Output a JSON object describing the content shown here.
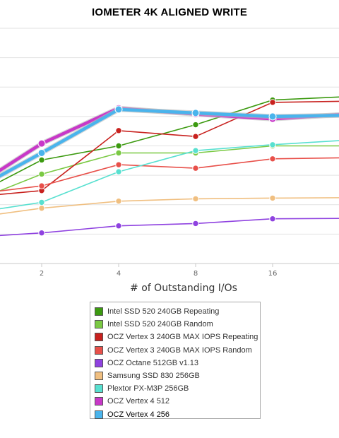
{
  "chart_data": {
    "type": "line",
    "title": "IOMETER 4K ALIGNED WRITE",
    "xlabel": "# of Outstanding I/Os",
    "ylabel": "",
    "x_scale": "log2",
    "x_ticks": [
      "2",
      "4",
      "8",
      "16"
    ],
    "ylim": [
      0,
      100
    ],
    "grid": "horizontal",
    "legend_position": "bottom",
    "series": [
      {
        "name": "Intel SSD 520 240GB Repeating",
        "color": "#3c9a10",
        "x": [
          1,
          2,
          4,
          8,
          16,
          32
        ],
        "y": [
          27,
          44,
          50,
          59,
          69.5,
          71
        ]
      },
      {
        "name": "Intel SSD 520 240GB Random",
        "color": "#7ac943",
        "x": [
          1,
          2,
          4,
          8,
          16,
          32
        ],
        "y": [
          25,
          38,
          47,
          47,
          50,
          50
        ]
      },
      {
        "name": "OCZ Vertex 3 240GB MAX IOPS Repeating",
        "color": "#c8211e",
        "x": [
          1,
          2,
          4,
          8,
          16,
          32
        ],
        "y": [
          28,
          31,
          56.5,
          54,
          68.5,
          69
        ]
      },
      {
        "name": "OCZ Vertex 3 240GB MAX IOPS Random",
        "color": "#e8504a",
        "x": [
          1,
          2,
          4,
          8,
          16,
          32
        ],
        "y": [
          29,
          33,
          42,
          40.5,
          44.5,
          45
        ]
      },
      {
        "name": "OCZ Octane 512GB v1.13",
        "color": "#8f42e0",
        "x": [
          1,
          2,
          4,
          8,
          16,
          32
        ],
        "y": [
          11,
          13,
          16,
          17,
          19,
          19.2
        ]
      },
      {
        "name": "Samsung SSD 830 256GB",
        "color": "#f0bf80",
        "x": [
          1,
          2,
          4,
          8,
          16,
          32
        ],
        "y": [
          19,
          23.5,
          26.5,
          27.5,
          27.8,
          28
        ]
      },
      {
        "name": "Plextor PX-M3P 256GB",
        "color": "#58e0d0",
        "x": [
          1,
          2,
          4,
          8,
          16,
          32
        ],
        "y": [
          21,
          26,
          39,
          48,
          50.5,
          52.5
        ]
      },
      {
        "name": "OCZ Vertex 4 512",
        "color": "#c838c8",
        "x": [
          1,
          2,
          4,
          8,
          16,
          32
        ],
        "y": [
          30,
          51,
          66,
          63.5,
          61.5,
          63.5
        ]
      },
      {
        "name": "OCZ Vertex 4 256",
        "color": "#4ab4ec",
        "x": [
          1,
          2,
          4,
          8,
          16,
          32
        ],
        "y": [
          29,
          47,
          65.5,
          64,
          62.5,
          63
        ]
      }
    ]
  }
}
